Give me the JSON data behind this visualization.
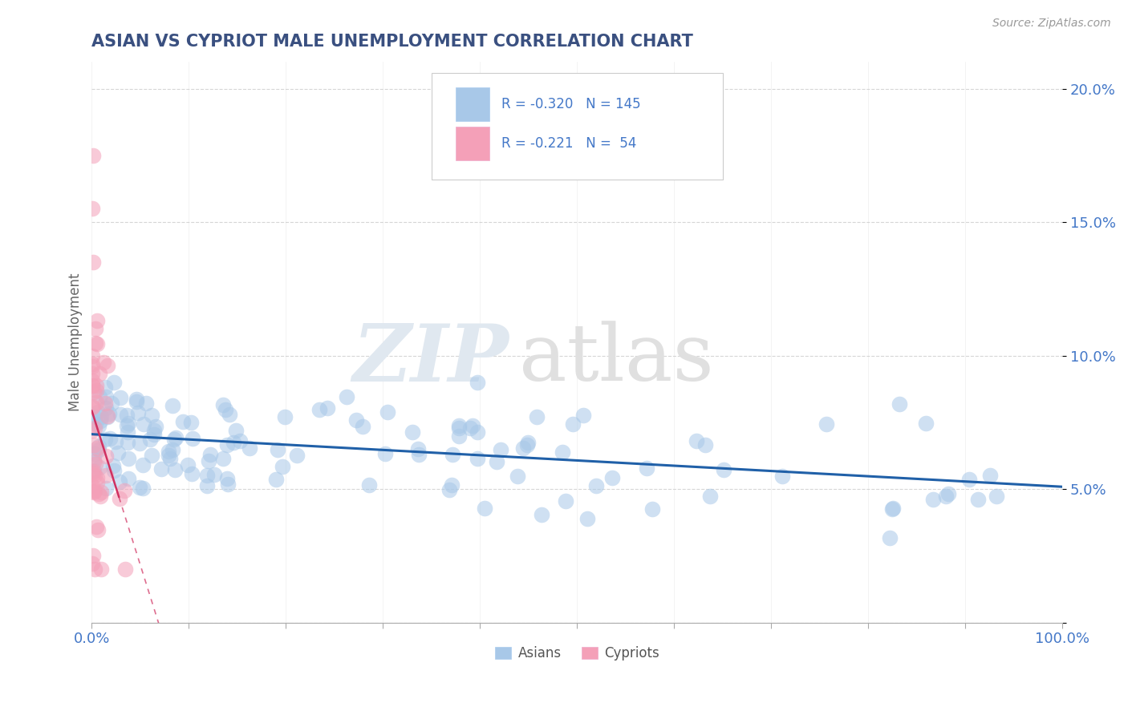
{
  "title": "ASIAN VS CYPRIOT MALE UNEMPLOYMENT CORRELATION CHART",
  "source_text": "Source: ZipAtlas.com",
  "ylabel": "Male Unemployment",
  "xlim": [
    0,
    1.0
  ],
  "ylim": [
    0,
    0.21
  ],
  "xticks": [
    0.0,
    0.1,
    0.2,
    0.3,
    0.4,
    0.5,
    0.6,
    0.7,
    0.8,
    0.9,
    1.0
  ],
  "xticklabels": [
    "0.0%",
    "",
    "",
    "",
    "",
    "",
    "",
    "",
    "",
    "",
    "100.0%"
  ],
  "yticks": [
    0.0,
    0.05,
    0.1,
    0.15,
    0.2
  ],
  "yticklabels": [
    "",
    "5.0%",
    "10.0%",
    "15.0%",
    "20.0%"
  ],
  "asian_color": "#A8C8E8",
  "cypriot_color": "#F4A0B8",
  "asian_line_color": "#2060A8",
  "cypriot_line_color": "#D03060",
  "title_color": "#3A5080",
  "axis_label_color": "#666666",
  "tick_label_color": "#4478C8",
  "grid_color": "#CCCCCC",
  "background_color": "#FFFFFF",
  "legend_asian_r": "R = -0.320",
  "legend_asian_n": "N = 145",
  "legend_cypriot_r": "R = -0.221",
  "legend_cypriot_n": "N =  54",
  "bottom_legend_asians": "Asians",
  "bottom_legend_cypriots": "Cypriots"
}
